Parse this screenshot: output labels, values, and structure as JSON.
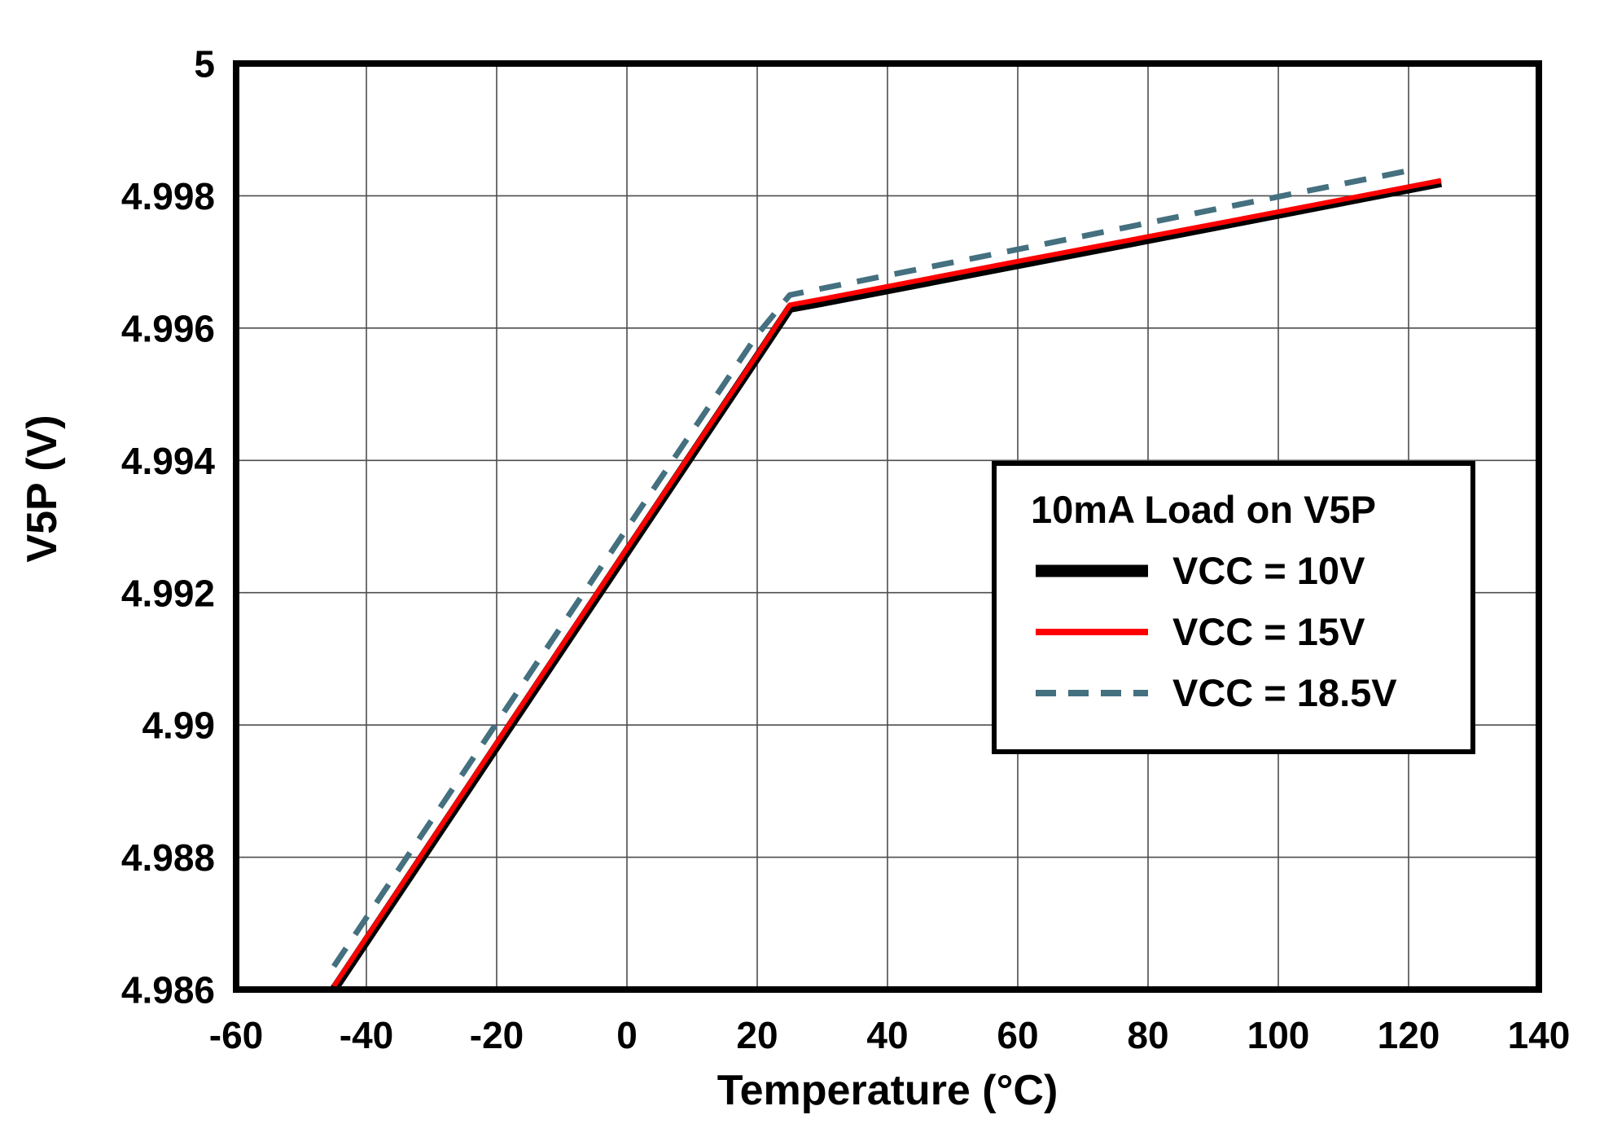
{
  "chart_data": {
    "type": "line",
    "title": "",
    "xlabel": "Temperature (°C)",
    "ylabel": "V5P (V)",
    "xlim": [
      -60,
      140
    ],
    "ylim": [
      4.986,
      5
    ],
    "grid": true,
    "grid_color": "#4d4d4d",
    "background": "#ffffff",
    "x_ticks": [
      {
        "v": -60,
        "label": "-60"
      },
      {
        "v": -40,
        "label": "-40"
      },
      {
        "v": -20,
        "label": "-20"
      },
      {
        "v": 0,
        "label": "0"
      },
      {
        "v": 20,
        "label": "20"
      },
      {
        "v": 40,
        "label": "40"
      },
      {
        "v": 60,
        "label": "60"
      },
      {
        "v": 80,
        "label": "80"
      },
      {
        "v": 100,
        "label": "100"
      },
      {
        "v": 120,
        "label": "120"
      },
      {
        "v": 140,
        "label": "140"
      }
    ],
    "y_ticks": [
      {
        "v": 4.986,
        "label": "4.986"
      },
      {
        "v": 4.988,
        "label": "4.988"
      },
      {
        "v": 4.99,
        "label": "4.99"
      },
      {
        "v": 4.992,
        "label": "4.992"
      },
      {
        "v": 4.994,
        "label": "4.994"
      },
      {
        "v": 4.996,
        "label": "4.996"
      },
      {
        "v": 4.998,
        "label": "4.998"
      },
      {
        "v": 5,
        "label": "5"
      }
    ],
    "legend": {
      "title": "10mA Load on V5P",
      "position": "middle-right"
    },
    "series": [
      {
        "name": "VCC = 10V",
        "color": "#000000",
        "style": "solid",
        "width": 11,
        "x": [
          -45,
          -20,
          0,
          20,
          25,
          30,
          60,
          90,
          125
        ],
        "y": [
          4.986,
          4.98968,
          4.99262,
          4.99556,
          4.9963,
          4.99639,
          4.99696,
          4.99753,
          4.9982
        ]
      },
      {
        "name": "VCC = 15V",
        "color": "#ff0000",
        "style": "solid",
        "width": 6,
        "x": [
          -45,
          -20,
          0,
          20,
          25,
          30,
          60,
          90,
          125
        ],
        "y": [
          4.98605,
          4.98973,
          4.99267,
          4.9956,
          4.99635,
          4.99644,
          4.99701,
          4.99757,
          4.99823
        ]
      },
      {
        "name": "VCC = 18.5V",
        "color": "#44707f",
        "style": "dashed",
        "width": 7,
        "x": [
          -45,
          -20,
          0,
          20,
          25,
          30,
          60,
          90,
          120
        ],
        "y": [
          4.98635,
          4.99003,
          4.99297,
          4.9959,
          4.9965,
          4.9966,
          4.99719,
          4.99779,
          4.99838
        ]
      }
    ]
  }
}
